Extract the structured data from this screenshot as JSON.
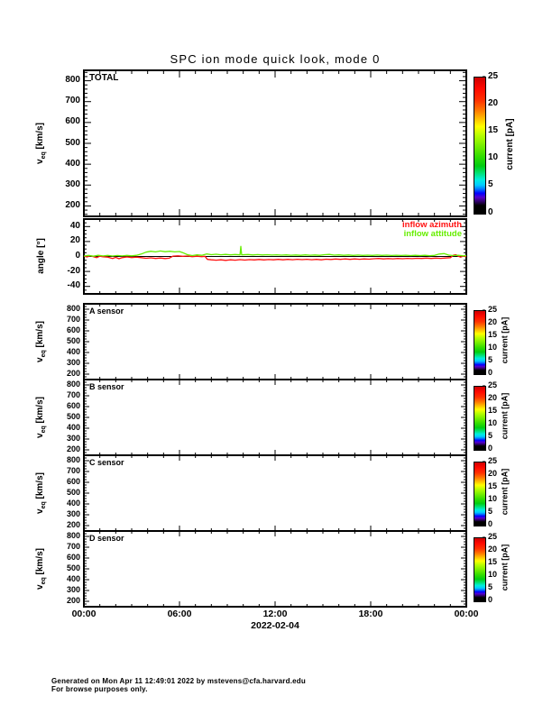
{
  "title": "SPC ion mode quick look, mode 0",
  "x_axis": {
    "tick_labels": [
      "00:00",
      "06:00",
      "12:00",
      "18:00",
      "00:00"
    ],
    "date_label": "2022-02-04",
    "hours_range": [
      0,
      24
    ],
    "major_tick_hours": [
      0,
      6,
      12,
      18,
      24
    ],
    "minor_tick_step_hours": 1
  },
  "colorbar": {
    "label": "current [pA]",
    "min": 0,
    "max": 25,
    "ticks": [
      0,
      5,
      10,
      15,
      20,
      25
    ],
    "gradient_bottom_to_top": [
      [
        0,
        "#000000"
      ],
      [
        6,
        "#000000"
      ],
      [
        9,
        "#30006a"
      ],
      [
        12,
        "#5500cc"
      ],
      [
        15,
        "#0000ff"
      ],
      [
        18,
        "#0077ff"
      ],
      [
        21,
        "#00ccff"
      ],
      [
        25,
        "#00eedd"
      ],
      [
        30,
        "#00e070"
      ],
      [
        35,
        "#00cc11"
      ],
      [
        42,
        "#33dd00"
      ],
      [
        50,
        "#77ee00"
      ],
      [
        58,
        "#bbff00"
      ],
      [
        64,
        "#ffff00"
      ],
      [
        70,
        "#ffbb00"
      ],
      [
        76,
        "#ff7700"
      ],
      [
        83,
        "#ff3300"
      ],
      [
        92,
        "#ff0800"
      ],
      [
        100,
        "#cc0000"
      ]
    ]
  },
  "footer": {
    "line1": "Generated on Mon Apr 11 12:49:01 2022 by mstevens@cfa.harvard.edu",
    "line2": "For browse purposes only."
  },
  "chart_data": [
    {
      "type": "heatmap",
      "inner_label": "TOTAL",
      "ylabel_base": "v",
      "ylabel_sub": "eq",
      "ylabel_rest": " [km/s]",
      "ylim": [
        150,
        850
      ],
      "yticks": [
        200,
        300,
        400,
        500,
        600,
        700,
        800
      ],
      "yminor_step": 20,
      "has_colorbar": true,
      "values": []
    },
    {
      "type": "line",
      "inner_label": "",
      "ylabel_base": "angle [°]",
      "ylabel_sub": "",
      "ylabel_rest": "",
      "ylim": [
        -50,
        50
      ],
      "yticks": [
        -40,
        -20,
        0,
        20,
        40
      ],
      "yminor_step": 5,
      "has_colorbar": false,
      "zero_line": true,
      "legend": [
        {
          "text": "inflow azimuth",
          "color": "#ff1111"
        },
        {
          "text": "inflow attitude",
          "color": "#66ee00"
        }
      ],
      "series": [
        {
          "name": "inflow azimuth",
          "color": "#ff1111",
          "points": [
            [
              0,
              0.3
            ],
            [
              0.2,
              -0.6
            ],
            [
              0.4,
              0.8
            ],
            [
              0.6,
              -0.2
            ],
            [
              0.8,
              -1.6
            ],
            [
              1.0,
              0.4
            ],
            [
              1.2,
              -0.4
            ],
            [
              1.5,
              -0.8
            ],
            [
              1.8,
              -2.6
            ],
            [
              2.0,
              -1.2
            ],
            [
              2.2,
              -3.0
            ],
            [
              2.4,
              -1.6
            ],
            [
              2.7,
              -0.6
            ],
            [
              3.0,
              -1.4
            ],
            [
              3.3,
              -0.8
            ],
            [
              3.6,
              -1.6
            ],
            [
              3.9,
              -2.4
            ],
            [
              4.2,
              -1.8
            ],
            [
              4.5,
              -2.6
            ],
            [
              4.8,
              -2.0
            ],
            [
              5.1,
              -2.8
            ],
            [
              5.35,
              -2.3
            ],
            [
              5.6,
              0.5
            ],
            [
              5.9,
              0.8
            ],
            [
              6.2,
              0.2
            ],
            [
              6.5,
              0.6
            ],
            [
              6.8,
              -0.3
            ],
            [
              7.1,
              0.4
            ],
            [
              7.4,
              -0.2
            ],
            [
              7.6,
              0.3
            ],
            [
              7.75,
              -3.8
            ],
            [
              8.0,
              -4.4
            ],
            [
              8.3,
              -5.0
            ],
            [
              8.6,
              -4.4
            ],
            [
              8.9,
              -5.2
            ],
            [
              9.2,
              -4.4
            ],
            [
              9.5,
              -5.0
            ],
            [
              9.8,
              -4.2
            ],
            [
              10.1,
              -4.8
            ],
            [
              10.4,
              -4.2
            ],
            [
              10.7,
              -4.6
            ],
            [
              11.0,
              -4.0
            ],
            [
              11.3,
              -4.6
            ],
            [
              11.6,
              -4.1
            ],
            [
              11.9,
              -4.5
            ],
            [
              12.2,
              -3.9
            ],
            [
              12.5,
              -4.4
            ],
            [
              12.8,
              -3.8
            ],
            [
              13.1,
              -4.3
            ],
            [
              13.4,
              -3.7
            ],
            [
              13.7,
              -4.2
            ],
            [
              14.0,
              -3.7
            ],
            [
              14.3,
              -4.3
            ],
            [
              14.6,
              -3.8
            ],
            [
              14.9,
              -4.4
            ],
            [
              15.2,
              -3.6
            ],
            [
              15.5,
              -4.0
            ],
            [
              15.8,
              -3.4
            ],
            [
              16.1,
              -3.9
            ],
            [
              16.4,
              -3.3
            ],
            [
              16.7,
              -3.8
            ],
            [
              17.0,
              -3.2
            ],
            [
              17.3,
              -3.7
            ],
            [
              17.6,
              -3.3
            ],
            [
              17.9,
              -3.6
            ],
            [
              18.2,
              -3.0
            ],
            [
              18.5,
              -2.7
            ],
            [
              18.8,
              -3.2
            ],
            [
              19.1,
              -2.8
            ],
            [
              19.4,
              -3.1
            ],
            [
              19.7,
              -2.6
            ],
            [
              20.0,
              -3.0
            ],
            [
              20.3,
              -2.5
            ],
            [
              20.6,
              -2.9
            ],
            [
              20.9,
              -2.4
            ],
            [
              21.2,
              -2.7
            ],
            [
              21.5,
              -2.2
            ],
            [
              21.8,
              -2.6
            ],
            [
              22.1,
              -2.2
            ],
            [
              22.4,
              -2.5
            ],
            [
              22.7,
              -2.0
            ],
            [
              23.0,
              -1.6
            ],
            [
              23.2,
              1.8
            ],
            [
              23.35,
              2.4
            ],
            [
              23.5,
              0.2
            ],
            [
              23.65,
              -0.8
            ],
            [
              23.8,
              0.4
            ],
            [
              24,
              -0.2
            ]
          ]
        },
        {
          "name": "inflow attitude",
          "color": "#66ee00",
          "points": [
            [
              0,
              0.6
            ],
            [
              0.3,
              1.4
            ],
            [
              0.6,
              0.4
            ],
            [
              0.9,
              1.6
            ],
            [
              1.2,
              0.7
            ],
            [
              1.5,
              1.4
            ],
            [
              1.8,
              0.6
            ],
            [
              2.1,
              1.3
            ],
            [
              2.4,
              0.7
            ],
            [
              2.7,
              1.4
            ],
            [
              3.0,
              0.9
            ],
            [
              3.3,
              1.6
            ],
            [
              3.6,
              3.2
            ],
            [
              3.9,
              5.8
            ],
            [
              4.2,
              7.0
            ],
            [
              4.5,
              6.2
            ],
            [
              4.8,
              7.4
            ],
            [
              5.1,
              6.4
            ],
            [
              5.4,
              7.0
            ],
            [
              5.7,
              6.2
            ],
            [
              6.0,
              6.6
            ],
            [
              6.2,
              5.2
            ],
            [
              6.5,
              2.4
            ],
            [
              6.8,
              1.2
            ],
            [
              7.1,
              2.2
            ],
            [
              7.4,
              1.6
            ],
            [
              7.7,
              3.4
            ],
            [
              8.0,
              2.4
            ],
            [
              8.3,
              3.0
            ],
            [
              8.6,
              2.3
            ],
            [
              8.9,
              2.8
            ],
            [
              9.2,
              2.2
            ],
            [
              9.5,
              2.6
            ],
            [
              9.8,
              2.2
            ],
            [
              9.85,
              13.5
            ],
            [
              9.9,
              2.2
            ],
            [
              10.3,
              2.6
            ],
            [
              10.6,
              2.1
            ],
            [
              10.9,
              2.5
            ],
            [
              11.2,
              2.0
            ],
            [
              11.5,
              2.4
            ],
            [
              11.8,
              1.9
            ],
            [
              12.1,
              2.3
            ],
            [
              12.4,
              1.8
            ],
            [
              12.7,
              2.2
            ],
            [
              13.0,
              1.7
            ],
            [
              13.3,
              2.1
            ],
            [
              13.6,
              1.6
            ],
            [
              13.9,
              2.2
            ],
            [
              14.2,
              1.7
            ],
            [
              14.5,
              2.1
            ],
            [
              14.8,
              1.6
            ],
            [
              15.1,
              2.4
            ],
            [
              15.4,
              2.8
            ],
            [
              15.7,
              1.8
            ],
            [
              16.0,
              2.2
            ],
            [
              16.3,
              1.6
            ],
            [
              16.6,
              2.0
            ],
            [
              16.9,
              1.5
            ],
            [
              17.2,
              1.9
            ],
            [
              17.5,
              1.4
            ],
            [
              17.8,
              1.8
            ],
            [
              18.1,
              1.4
            ],
            [
              18.4,
              1.9
            ],
            [
              18.7,
              1.5
            ],
            [
              19.0,
              1.8
            ],
            [
              19.3,
              1.3
            ],
            [
              19.6,
              1.7
            ],
            [
              19.9,
              1.3
            ],
            [
              20.2,
              1.7
            ],
            [
              20.5,
              1.2
            ],
            [
              20.8,
              1.6
            ],
            [
              21.1,
              1.2
            ],
            [
              21.4,
              1.6
            ],
            [
              21.7,
              1.1
            ],
            [
              22.0,
              1.4
            ],
            [
              22.3,
              3.2
            ],
            [
              22.6,
              3.8
            ],
            [
              22.9,
              1.8
            ],
            [
              23.2,
              1.2
            ],
            [
              23.5,
              1.7
            ],
            [
              23.8,
              0.9
            ],
            [
              24,
              1.1
            ]
          ]
        }
      ]
    },
    {
      "type": "heatmap",
      "inner_label": "A sensor",
      "ylabel_base": "v",
      "ylabel_sub": "eq",
      "ylabel_rest": " [km/s]",
      "ylim": [
        150,
        850
      ],
      "yticks": [
        200,
        300,
        400,
        500,
        600,
        700,
        800
      ],
      "yminor_step": 25,
      "has_colorbar": true,
      "values": []
    },
    {
      "type": "heatmap",
      "inner_label": "B sensor",
      "ylabel_base": "v",
      "ylabel_sub": "eq",
      "ylabel_rest": " [km/s]",
      "ylim": [
        150,
        850
      ],
      "yticks": [
        200,
        300,
        400,
        500,
        600,
        700,
        800
      ],
      "yminor_step": 25,
      "has_colorbar": true,
      "values": []
    },
    {
      "type": "heatmap",
      "inner_label": "C sensor",
      "ylabel_base": "v",
      "ylabel_sub": "eq",
      "ylabel_rest": " [km/s]",
      "ylim": [
        150,
        850
      ],
      "yticks": [
        200,
        300,
        400,
        500,
        600,
        700,
        800
      ],
      "yminor_step": 25,
      "has_colorbar": true,
      "values": []
    },
    {
      "type": "heatmap",
      "inner_label": "D sensor",
      "ylabel_base": "v",
      "ylabel_sub": "eq",
      "ylabel_rest": " [km/s]",
      "ylim": [
        150,
        850
      ],
      "yticks": [
        200,
        300,
        400,
        500,
        600,
        700,
        800
      ],
      "yminor_step": 25,
      "has_colorbar": true,
      "values": []
    }
  ]
}
